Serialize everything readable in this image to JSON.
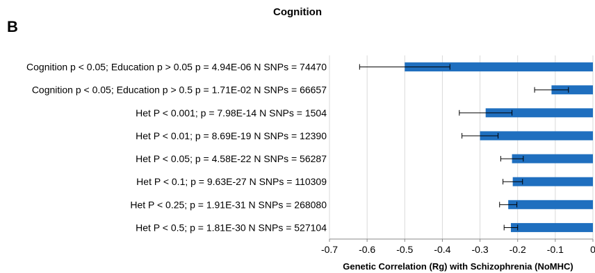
{
  "panel_label": "B",
  "chart_data": {
    "type": "bar",
    "orientation": "horizontal",
    "title": "Cognition",
    "xlabel": "Genetic Correlation (Rg) with Schizophrenia (NoMHC)",
    "ylabel": "",
    "xlim": [
      -0.7,
      0
    ],
    "xticks": [
      -0.7,
      -0.6,
      -0.5,
      -0.4,
      -0.3,
      -0.2,
      -0.1,
      0
    ],
    "xtick_labels": [
      "-0.7",
      "-0.6",
      "-0.5",
      "-0.4",
      "-0.3",
      "-0.2",
      "-0.1",
      "0"
    ],
    "grid": "vertical",
    "bar_color": "#1F6FBF",
    "categories": [
      "Cognition p < 0.05; Education p > 0.05  p = 4.94E-06 N SNPs = 74470",
      "Cognition p < 0.05; Education p > 0.5 p = 1.71E-02 N SNPs = 66657",
      "Het P < 0.001; p = 7.98E-14 N SNPs = 1504",
      "Het P < 0.01; p = 8.69E-19 N SNPs = 12390",
      "Het P < 0.05; p = 4.58E-22 N SNPs = 56287",
      "Het P < 0.1; p = 9.63E-27 N SNPs = 110309",
      "Het P < 0.25; p = 1.91E-31 N SNPs = 268080",
      "Het P < 0.5; p = 1.81E-30 N SNPs = 527104"
    ],
    "values": [
      -0.5,
      -0.11,
      -0.285,
      -0.3,
      -0.215,
      -0.213,
      -0.225,
      -0.218
    ],
    "errors": [
      0.12,
      0.045,
      0.07,
      0.048,
      0.03,
      0.026,
      0.023,
      0.018
    ]
  }
}
